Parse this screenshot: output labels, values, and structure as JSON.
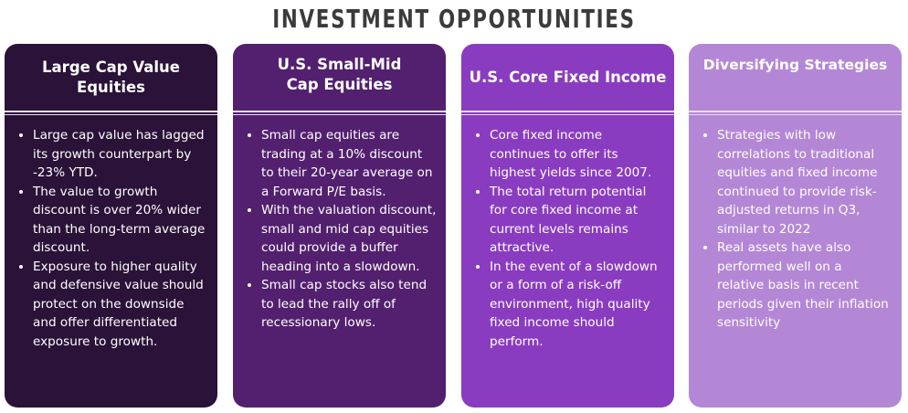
{
  "title": "INVESTMENT OPPORTUNITIES",
  "colors": {
    "card1": "#2a1238",
    "card2": "#52206e",
    "card3": "#8a3cc0",
    "card4": "#b487d6",
    "title": "#3b3b3b"
  },
  "cards": [
    {
      "heading": "Large Cap Value Equities",
      "bullets": [
        "Large cap value has lagged its growth counterpart by -23% YTD.",
        "The value to growth discount is over 20% wider than the long-term average discount.",
        "Exposure to higher quality and defensive value should protect on the downside and offer differentiated exposure to growth."
      ]
    },
    {
      "heading": "U.S. Small-Mid Cap Equities",
      "bullets": [
        "Small cap equities are trading at a 10% discount to their 20-year average on a Forward P/E basis.",
        "With the valuation discount, small and mid cap equities could provide a buffer heading into a slowdown.",
        "Small cap stocks also tend to lead the rally off of recessionary lows."
      ]
    },
    {
      "heading": "U.S. Core Fixed Income",
      "bullets": [
        "Core fixed income continues to offer its highest yields since 2007.",
        "The total return potential for core fixed income at current levels remains attractive.",
        "In the event of a slowdown or a form of a risk-off environment, high quality fixed income should perform."
      ]
    },
    {
      "heading": "Diversifying Strategies",
      "bullets": [
        "Strategies with low correlations to traditional equities and fixed income continued to provide risk-adjusted returns in Q3, similar to 2022",
        "Real assets have also performed well on a relative basis in recent periods given their inflation sensitivity"
      ]
    }
  ]
}
